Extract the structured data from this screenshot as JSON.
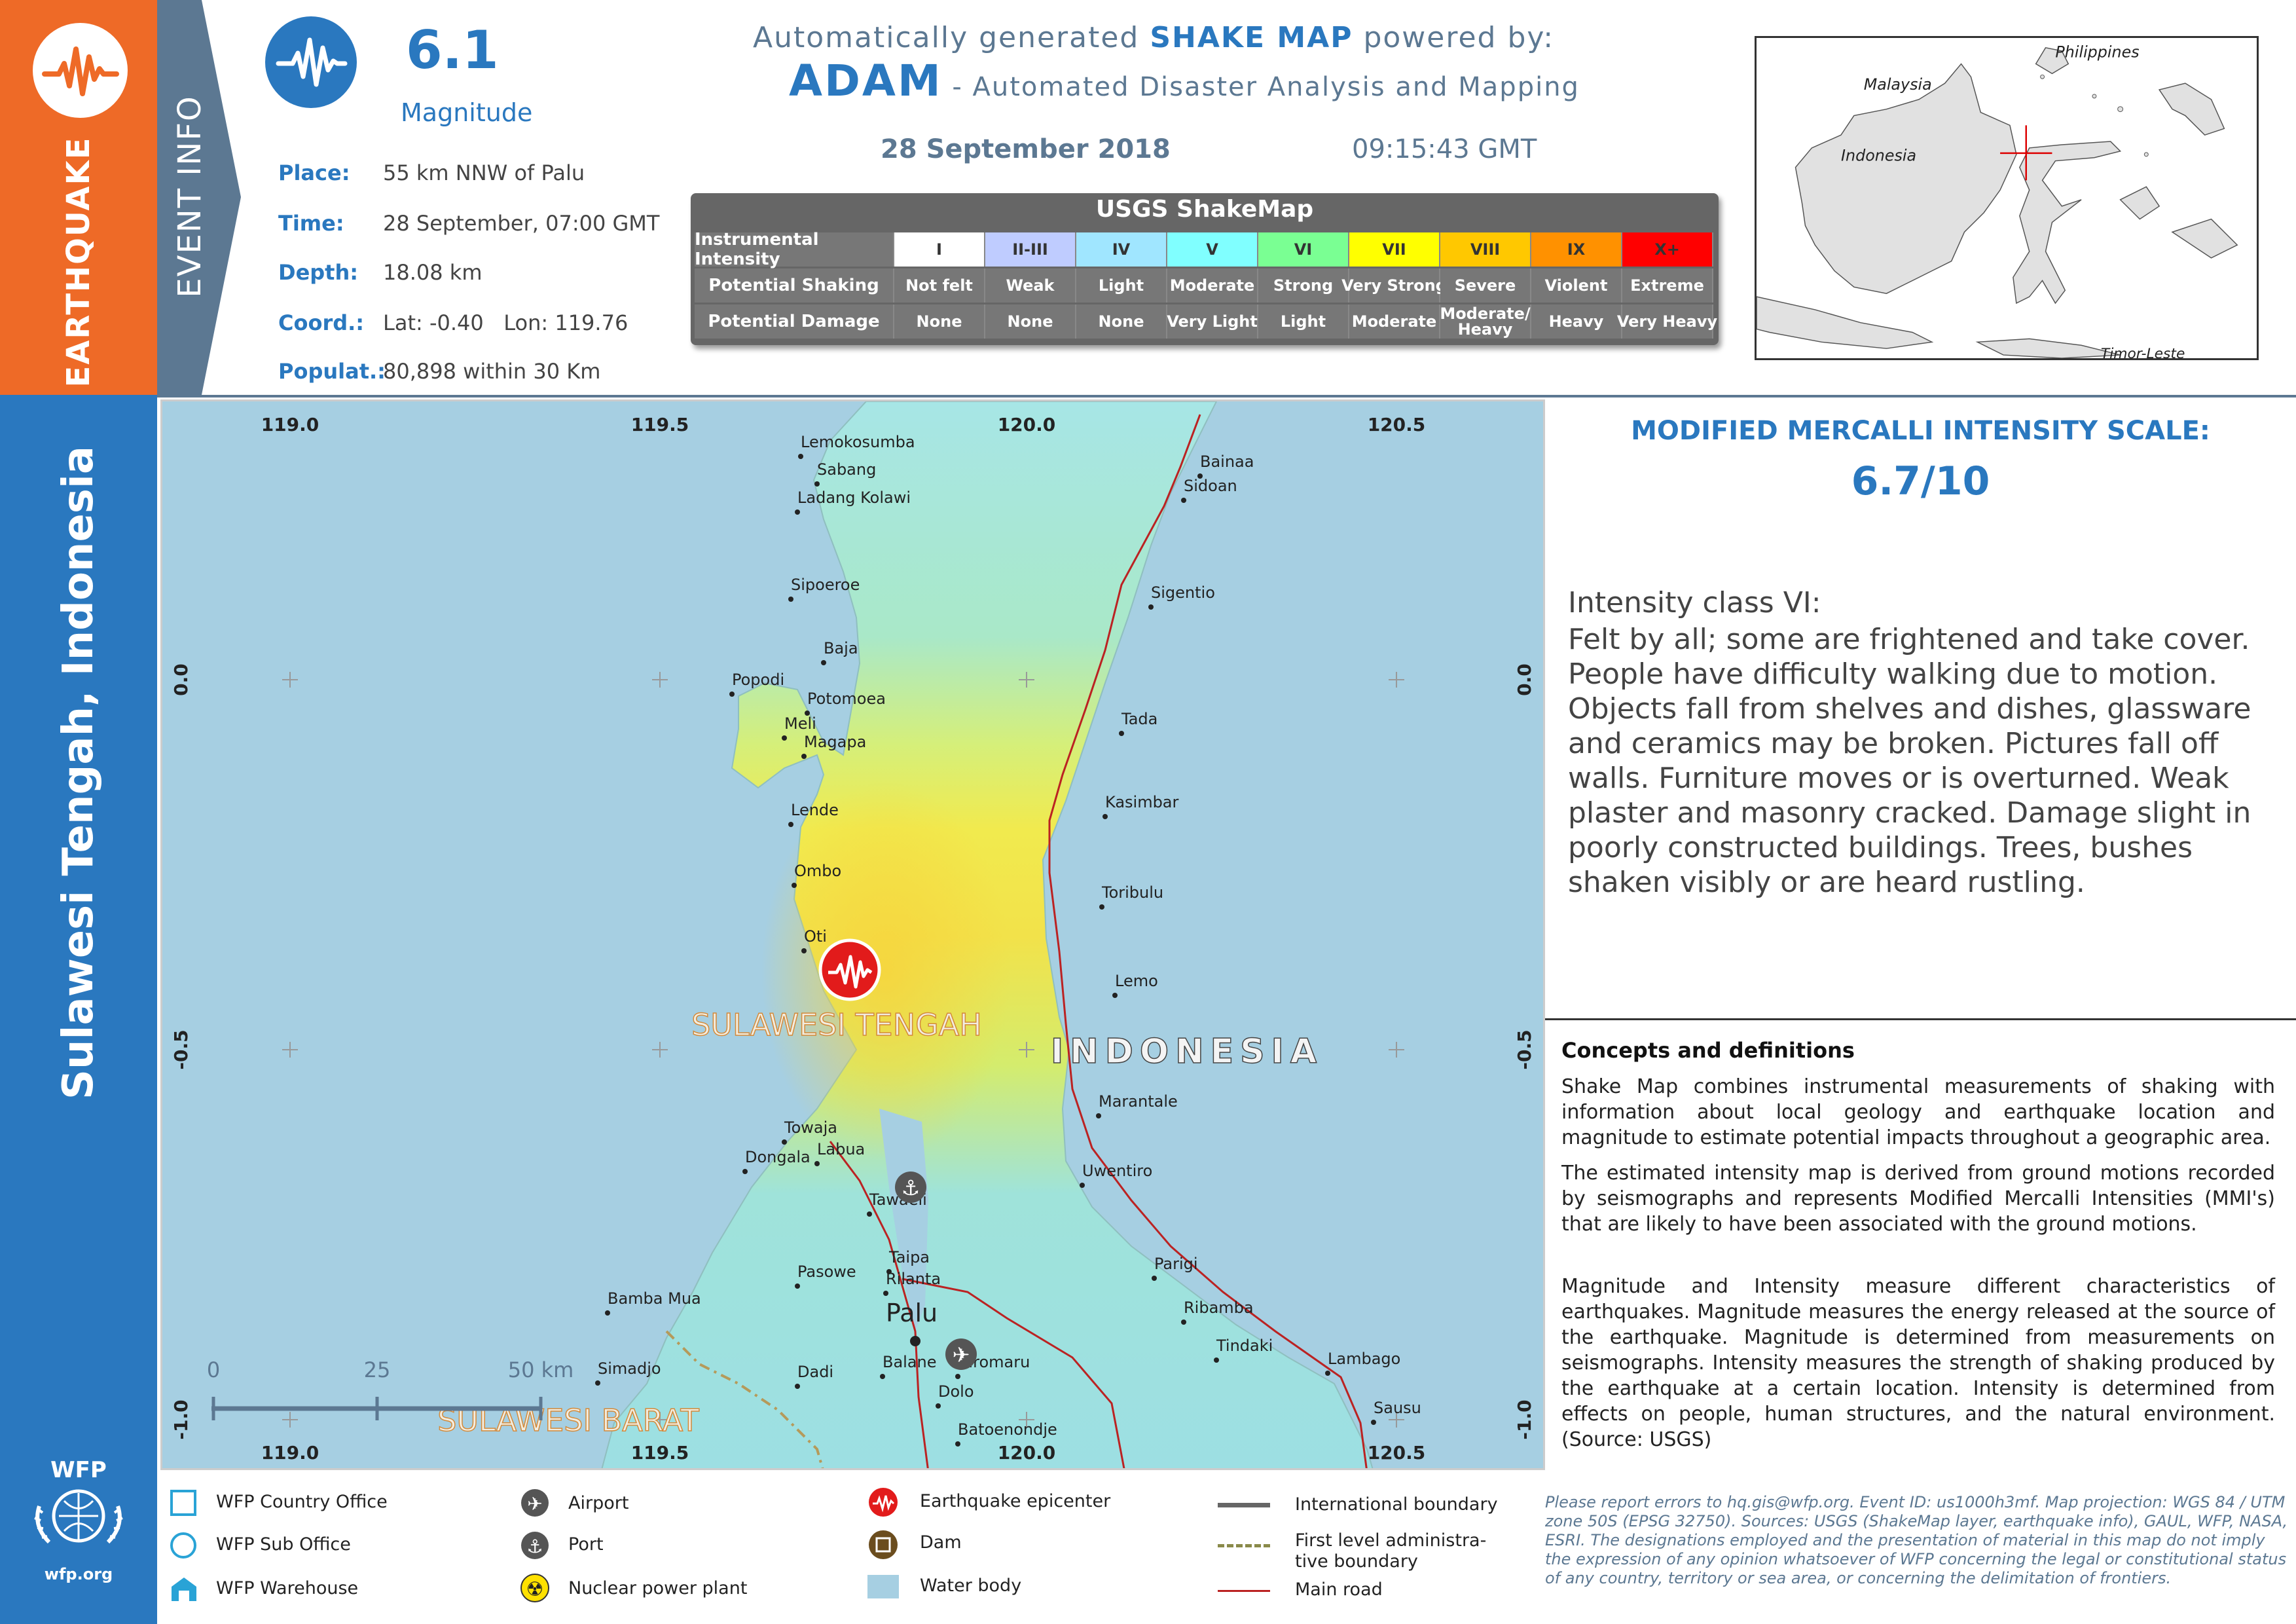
{
  "bands": {
    "hazard": "EARTHQUAKE",
    "event_info": "EVENT INFO",
    "region": "Sulawesi Tengah, Indonesia",
    "logo_text": "WFP",
    "logo_url": "wfp.org"
  },
  "event": {
    "magnitude": "6.1",
    "magnitude_label": "Magnitude",
    "rows": [
      {
        "key": "Place:",
        "value": "55 km NNW of Palu"
      },
      {
        "key": "Time:",
        "value": "28 September, 07:00 GMT"
      },
      {
        "key": "Depth:",
        "value": "18.08 km"
      },
      {
        "key": "Coord.:",
        "value": "Lat: -0.40   Lon: 119.76"
      },
      {
        "key": "Populat.:",
        "value": "80,898 within 30 Km"
      }
    ]
  },
  "header": {
    "line1_pre": "Automatically generated ",
    "line1_bold": "SHAKE MAP",
    "line1_post": " powered by:",
    "line2_bold": "ADAM",
    "line2_post": " - Automated Disaster Analysis and Mapping",
    "date": "28 September 2018",
    "time": "09:15:43 GMT"
  },
  "shakemap": {
    "title": "USGS ShakeMap",
    "row_labels": [
      "Instrumental Intensity",
      "Potential Shaking",
      "Potential Damage"
    ],
    "levels": [
      {
        "intensity": "I",
        "shaking": "Not felt",
        "damage": "None",
        "color": "#ffffff"
      },
      {
        "intensity": "II-III",
        "shaking": "Weak",
        "damage": "None",
        "color": "#bfccff"
      },
      {
        "intensity": "IV",
        "shaking": "Light",
        "damage": "None",
        "color": "#a0e6ff"
      },
      {
        "intensity": "V",
        "shaking": "Moderate",
        "damage": "Very Light",
        "color": "#80ffff"
      },
      {
        "intensity": "VI",
        "shaking": "Strong",
        "damage": "Light",
        "color": "#7aff93"
      },
      {
        "intensity": "VII",
        "shaking": "Very Strong",
        "damage": "Moderate",
        "color": "#ffff00"
      },
      {
        "intensity": "VIII",
        "shaking": "Severe",
        "damage": "Moderate/\nHeavy",
        "color": "#ffc800"
      },
      {
        "intensity": "IX",
        "shaking": "Violent",
        "damage": "Heavy",
        "color": "#ff9100"
      },
      {
        "intensity": "X+",
        "shaking": "Extreme",
        "damage": "Very Heavy",
        "color": "#ff0000"
      }
    ]
  },
  "inset": {
    "labels": [
      "Philippines",
      "Malaysia",
      "Indonesia",
      "Timor-Leste"
    ]
  },
  "map": {
    "lon_ticks": [
      "119.0",
      "119.5",
      "120.0",
      "120.5"
    ],
    "lat_ticks": [
      "0.0",
      "-0.5",
      "-1.0"
    ],
    "country_label": "INDONESIA",
    "province_label": "SULAWESI TENGAH",
    "province_label_2": "SULAWESI BARAT",
    "scale_labels": [
      "0",
      "25",
      "50 km"
    ],
    "places": [
      "Lemokosumba",
      "Sabang",
      "Ladang Kolawi",
      "Bainaa",
      "Sidoan",
      "Sigentio",
      "Sipoeroe",
      "Baja",
      "Popodi",
      "Potomoea",
      "Tada",
      "Meli",
      "Magapa",
      "Kasimbar",
      "Lende",
      "Ombo",
      "Toribulu",
      "Oti",
      "Lemo",
      "Marantale",
      "Towaja",
      "Labua",
      "Dongala",
      "Uwentiro",
      "Tawaeli",
      "Taipa",
      "Rilanta",
      "Parigi",
      "Pasowe",
      "Bamba Mua",
      "Palu",
      "Ribamba",
      "Tindaki",
      "Lambago",
      "Simadjo",
      "Dadi",
      "Balane",
      "Biromaru",
      "Dolo",
      "Sausu",
      "Batoenondje"
    ]
  },
  "mmi": {
    "title": "MODIFIED MERCALLI INTENSITY SCALE:",
    "value": "6.7/10",
    "class": "Intensity class VI:",
    "description": "Felt by all; some are frightened and take cover. People have difficulty walking due to motion. Objects fall from shelves and dishes, glassware and ceramics may be broken. Pictures fall off walls. Furniture moves or is overturned. Weak plaster and masonry cracked. Damage slight in poorly constructed buildings. Trees, bushes shaken visibly or are heard rustling."
  },
  "concepts": {
    "title": "Concepts and definitions",
    "paragraphs": [
      "Shake Map combines instrumental measurements of shaking with information about local geology and earthquake location and magnitude to estimate potential impacts throughout a geographic area.",
      "The estimated intensity map is derived from ground motions recorded by seismographs and represents Modified Mercalli Intensities (MMI's) that are likely to have been associated with the ground motions.",
      "Magnitude and Intensity measure different characteristics of earthquakes. Magnitude measures the energy released at the source of the earthquake. Magnitude is determined from measurements on seismographs. Intensity measures the strength of shaking produced by the earthquake at a certain location. Intensity is determined from effects on people, human structures, and the natural environment. (Source: USGS)"
    ]
  },
  "legend": {
    "items": [
      "WFP Country Office",
      "WFP Sub Office",
      "WFP Warehouse",
      "Airport",
      "Port",
      "Nuclear power plant",
      "Earthquake epicenter",
      "Dam",
      "Water body",
      "International boundary",
      "First level administra-\ntive boundary",
      "Main road"
    ]
  },
  "disclaimer": "Please report errors to hq.gis@wfp.org. Event ID: us1000h3mf. Map projection: WGS 84 / UTM zone 50S (EPSG 32750). Sources: USGS (ShakeMap layer, earthquake info), GAUL, WFP, NASA, ESRI. The designations employed and the presentation of material in this map do not imply the expression of any opinion whatsoever of WFP concerning the legal or constitutional status of any country, territory or sea area, or concerning the delimitation of frontiers."
}
